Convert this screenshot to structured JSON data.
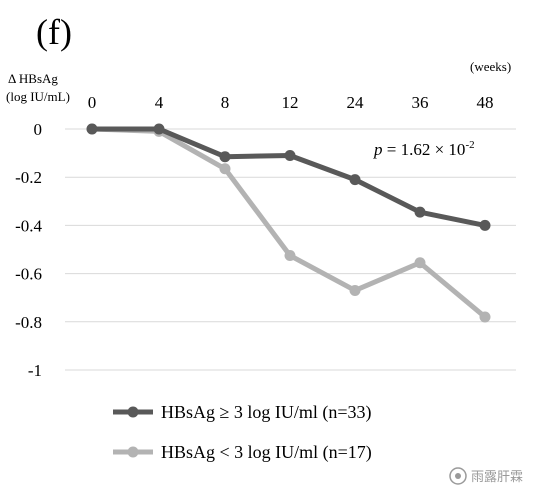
{
  "panel_label": "(f)",
  "watermark_text": "雨露肝霖",
  "annotation": {
    "p_symbol": "p",
    "p_value_text": " = 1.62 × 10",
    "p_exponent": "-2"
  },
  "chart_data": {
    "type": "line",
    "x_unit": "(weeks)",
    "ylabel_line1": "Δ HBsAg",
    "ylabel_line2": "(log IU/mL)",
    "categories": [
      "0",
      "4",
      "8",
      "12",
      "24",
      "36",
      "48"
    ],
    "ylim": [
      -1,
      0
    ],
    "yticks": [
      0,
      -0.2,
      -0.4,
      -0.6,
      -0.8,
      -1
    ],
    "ytick_labels": [
      "0",
      "-0.2",
      "-0.4",
      "-0.6",
      "-0.8",
      "-1"
    ],
    "grid": true,
    "legend_position": "bottom",
    "series": [
      {
        "name": "HBsAg ≥ 3 log IU/ml (n=33)",
        "color": "#595959",
        "values": [
          0,
          0,
          -0.115,
          -0.11,
          -0.21,
          -0.345,
          -0.4
        ]
      },
      {
        "name": "HBsAg < 3 log IU/ml (n=17)",
        "color": "#b3b3b3",
        "values": [
          0,
          -0.01,
          -0.165,
          -0.525,
          -0.67,
          -0.555,
          -0.78
        ]
      }
    ]
  }
}
